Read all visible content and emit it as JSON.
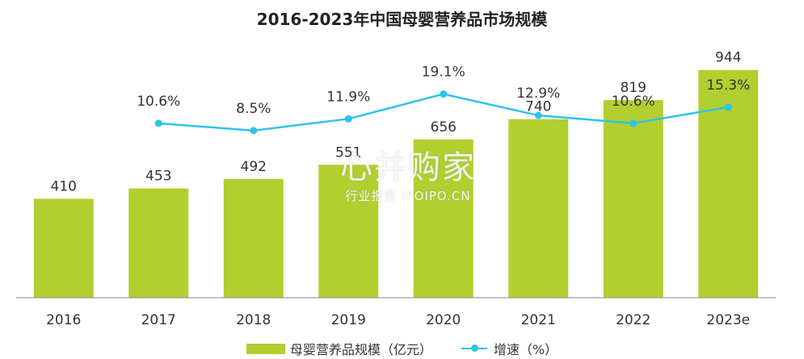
{
  "chart_data": {
    "type": "bar",
    "title": "2016-2023年中国母婴营养品市场规模",
    "categories": [
      "2016",
      "2017",
      "2018",
      "2019",
      "2020",
      "2021",
      "2022",
      "2023e"
    ],
    "series": [
      {
        "name": "母婴营养品规模（亿元）",
        "type": "bar",
        "values": [
          410,
          453,
          492,
          551,
          656,
          740,
          819,
          944
        ],
        "color": "#b1cf2f"
      },
      {
        "name": "增速（%）",
        "type": "line",
        "values": [
          null,
          10.6,
          8.5,
          11.9,
          19.1,
          12.9,
          10.6,
          15.3
        ],
        "labels": [
          "",
          "10.6%",
          "8.5%",
          "11.9%",
          "19.1%",
          "12.9%",
          "10.6%",
          "15.3%"
        ],
        "color": "#2ec3ea"
      }
    ],
    "ylim": [
      0,
      1000
    ],
    "line_ylim": [
      -40,
      30
    ],
    "grid": false,
    "legend_position": "bottom"
  },
  "watermark": {
    "main": "心并购家",
    "sub": "行业报告 IPOIPO.CN"
  }
}
